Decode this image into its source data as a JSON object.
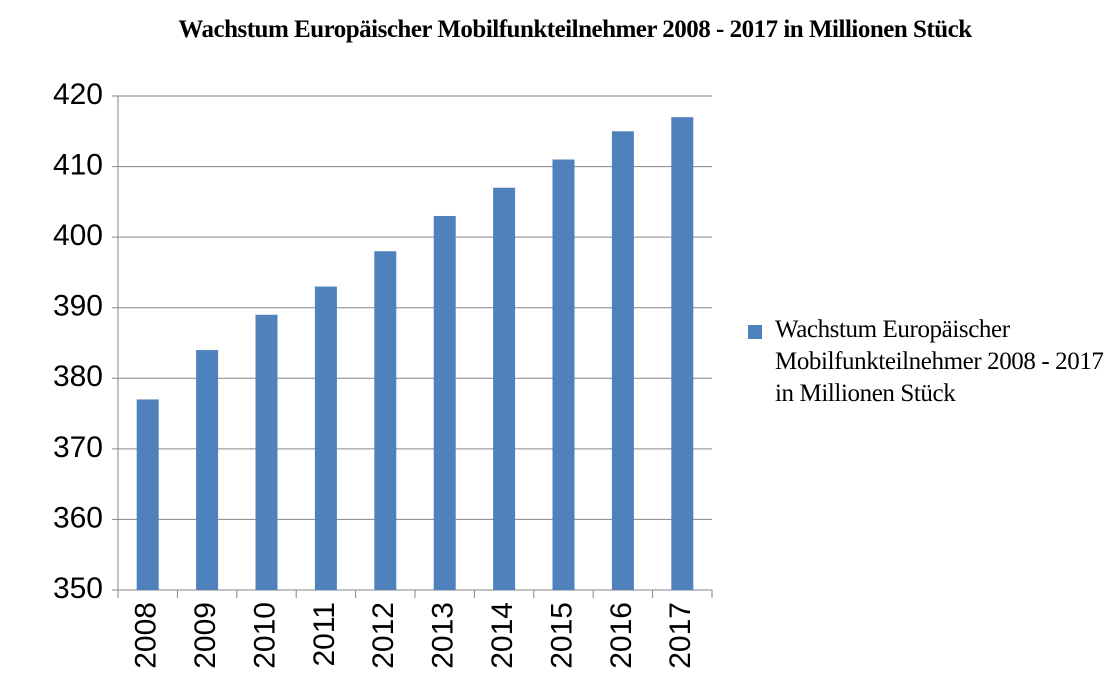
{
  "chart_data": {
    "type": "bar",
    "title": "Wachstum Europäischer Mobilfunkteilnehmer 2008 - 2017 in Millionen Stück",
    "categories": [
      "2008",
      "2009",
      "2010",
      "2011",
      "2012",
      "2013",
      "2014",
      "2015",
      "2016",
      "2017"
    ],
    "series": [
      {
        "name": "Wachstum Europäischer Mobilfunkteilnehmer 2008 - 2017 in Millionen Stück",
        "color": "#4f81bd",
        "values": [
          377,
          384,
          389,
          393,
          398,
          403,
          407,
          411,
          415,
          417
        ]
      }
    ],
    "ylim": [
      350,
      420
    ],
    "yticks": [
      350,
      360,
      370,
      380,
      390,
      400,
      410,
      420
    ],
    "grid": true,
    "legend": "right"
  }
}
